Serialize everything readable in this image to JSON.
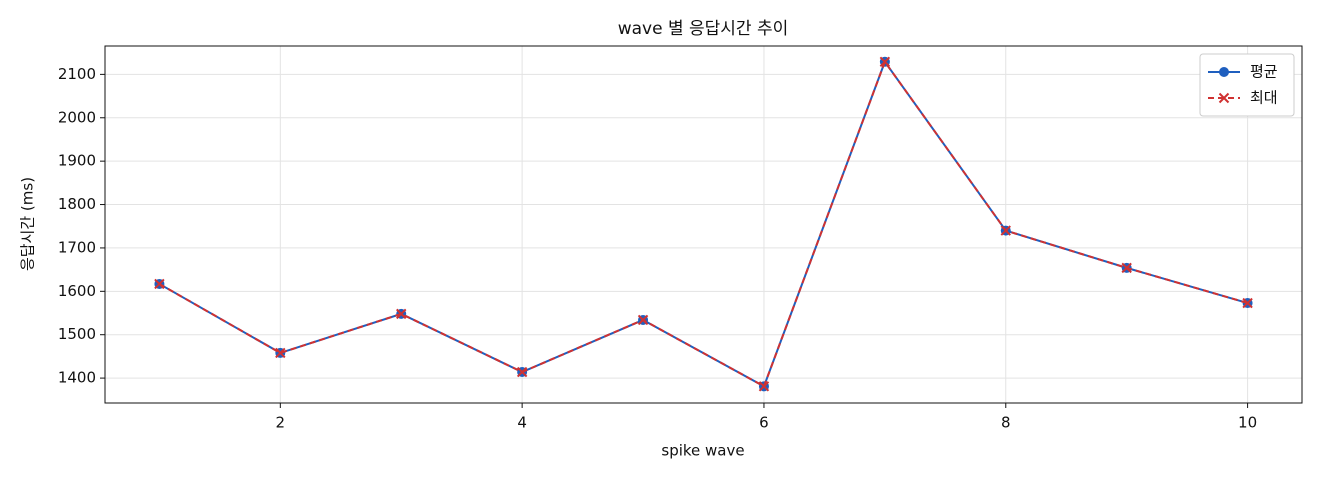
{
  "chart_data": {
    "type": "line",
    "title": "wave 별 응답시간 추이",
    "xlabel": "spike wave",
    "ylabel": "응답시간 (ms)",
    "x": [
      1,
      2,
      3,
      4,
      5,
      6,
      7,
      8,
      9,
      10
    ],
    "series": [
      {
        "name": "평균",
        "color": "#1f5fbf",
        "linestyle": "solid",
        "marker": "o",
        "values": [
          1617,
          1458,
          1548,
          1414,
          1534,
          1381,
          2129,
          1740,
          1654,
          1573
        ]
      },
      {
        "name": "최대",
        "color": "#d03232",
        "linestyle": "dashed",
        "marker": "x",
        "values": [
          1617,
          1458,
          1548,
          1414,
          1534,
          1381,
          2129,
          1740,
          1654,
          1573
        ]
      }
    ],
    "xlim": [
      0.55,
      10.45
    ],
    "ylim": [
      1342.6,
      2165.4
    ],
    "xticks": [
      2,
      4,
      6,
      8,
      10
    ],
    "yticks": [
      1400,
      1500,
      1600,
      1700,
      1800,
      1900,
      2000,
      2100
    ],
    "grid": true,
    "legend": "upper right"
  }
}
